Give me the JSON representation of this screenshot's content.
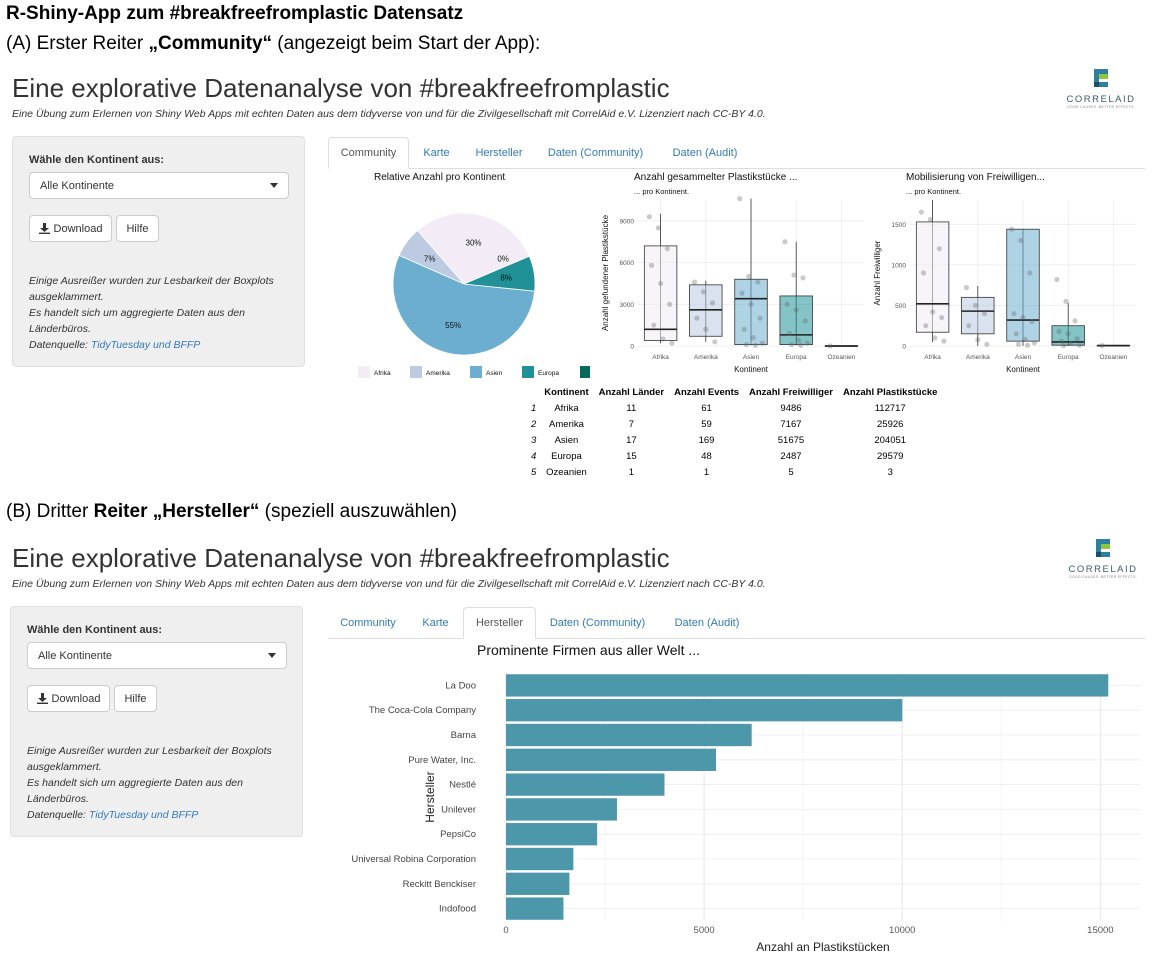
{
  "heading": "R-Shiny-App zum #breakfreefromplastic Datensatz",
  "captionA": {
    "prefix": "(A) Erster Reiter ",
    "bold": "„Community“",
    "suffix": " (angezeigt beim Start der App):"
  },
  "captionB": {
    "prefix": "(B) Dritter ",
    "bold": "Reiter „Hersteller“",
    "suffix": " (speziell auszuwählen)"
  },
  "app": {
    "title": "Eine explorative Datenanalyse von #breakfreefromplastic",
    "subtitle": "Eine Übung zum Erlernen von Shiny Web Apps mit echten Daten aus dem tidyverse von und für die Zivilgesellschaft mit CorrelAid e.V. Lizenziert nach CC-BY 4.0.",
    "logo_word": "CORRELAID",
    "logo_tag": "GOOD CAUSES. BETTER EFFECTS.",
    "logo_colors": [
      "#2f7fa0",
      "#8ec63f",
      "#1c4f66"
    ]
  },
  "sidebar": {
    "label": "Wähle den Kontinent aus:",
    "select_value": "Alle Kontinente",
    "download_label": "Download",
    "help_label": "Hilfe",
    "note1": "Einige Ausreißer wurden zur Lesbarkeit der Boxplots ausgeklammert.",
    "note2": "Es handelt sich um aggregierte Daten aus den Länderbüros.",
    "source_prefix": "Datenquelle: ",
    "source_link": "TidyTuesday und BFFP"
  },
  "tabs": [
    "Community",
    "Karte",
    "Hersteller",
    "Daten (Community)",
    "Daten (Audit)"
  ],
  "colors": {
    "afrika": "#f3ecf6",
    "amerika": "#bccbe2",
    "asien": "#6baed0",
    "europa": "#1f9197",
    "ozeanien": "#05695c",
    "bar": "#4d97ab",
    "link": "#337ab7"
  },
  "community": {
    "pie_title": "Relative Anzahl pro Kontinent",
    "legend": [
      "Afrika",
      "Amerika",
      "Asien",
      "Europa",
      "Ozeanien"
    ],
    "box1_title": "Anzahl gesammelter Plastikstücke ...",
    "box1_sub": "... pro Kontinent.",
    "box1_ylabel": "Anzahl gefundener Plastikstücke",
    "box2_title": "Mobilisierung von Freiwilligen...",
    "box2_sub": "... pro Kontinent.",
    "box2_ylabel": "Anzahl Freiwilliger",
    "xlabel": "Kontinent",
    "table": {
      "headers": [
        "Kontinent",
        "Anzahl Länder",
        "Anzahl Events",
        "Anzahl Freiwilliger",
        "Anzahl Plastikstücke"
      ],
      "rows": [
        [
          "1",
          "Afrika",
          "11",
          "61",
          "9486",
          "112717"
        ],
        [
          "2",
          "Amerika",
          "7",
          "59",
          "7167",
          "25926"
        ],
        [
          "3",
          "Asien",
          "17",
          "169",
          "51675",
          "204051"
        ],
        [
          "4",
          "Europa",
          "15",
          "48",
          "2487",
          "29579"
        ],
        [
          "5",
          "Ozeanien",
          "1",
          "1",
          "5",
          "3"
        ]
      ]
    }
  },
  "hersteller": {
    "title": "Prominente Firmen aus aller Welt ..."
  },
  "chart_data": [
    {
      "type": "pie",
      "title": "Relative Anzahl pro Kontinent",
      "categories": [
        "Afrika",
        "Amerika",
        "Asien",
        "Europa",
        "Ozeanien"
      ],
      "values": [
        30,
        7,
        55,
        8,
        0
      ],
      "labels": [
        "30%",
        "7%",
        "55%",
        "8%",
        "0%"
      ]
    },
    {
      "type": "box",
      "title": "Anzahl gesammelter Plastikstücke ...",
      "subtitle": "... pro Kontinent.",
      "xlabel": "Kontinent",
      "ylabel": "Anzahl gefundener Plastikstücke",
      "ylim": [
        0,
        10500
      ],
      "yticks": [
        0,
        3000,
        6000,
        9000
      ],
      "categories": [
        "Afrika",
        "Amerika",
        "Asien",
        "Europa",
        "Ozeanien"
      ],
      "boxes": [
        {
          "min": 200,
          "q1": 400,
          "median": 1200,
          "q3": 7200,
          "max": 9500
        },
        {
          "min": 300,
          "q1": 700,
          "median": 2600,
          "q3": 4400,
          "max": 4700
        },
        {
          "min": 50,
          "q1": 100,
          "median": 3400,
          "q3": 4800,
          "max": 10600
        },
        {
          "min": 50,
          "q1": 100,
          "median": 800,
          "q3": 3600,
          "max": 7500
        },
        {
          "min": 3,
          "q1": 3,
          "median": 3,
          "q3": 3,
          "max": 3
        }
      ],
      "points": [
        [
          9300,
          8500,
          7000,
          5800,
          4500,
          3000,
          1500,
          500,
          200
        ],
        [
          4600,
          3900,
          3100,
          2000,
          1200,
          300
        ],
        [
          10600,
          5000,
          4600,
          3800,
          3000,
          2000,
          1200,
          600,
          200,
          100,
          50
        ],
        [
          7500,
          5100,
          4900,
          3000,
          2600,
          1800,
          900,
          400,
          200,
          100,
          50
        ],
        [
          3
        ]
      ]
    },
    {
      "type": "box",
      "title": "Mobilisierung von Freiwilligen...",
      "subtitle": "... pro Kontinent.",
      "xlabel": "Kontinent",
      "ylabel": "Anzahl Freiwilliger",
      "ylim": [
        0,
        1800
      ],
      "yticks": [
        0,
        500,
        1000,
        1500
      ],
      "categories": [
        "Afrika",
        "Amerika",
        "Asien",
        "Europa",
        "Ozeanien"
      ],
      "boxes": [
        {
          "min": 50,
          "q1": 170,
          "median": 520,
          "q3": 1530,
          "max": 1800
        },
        {
          "min": 0,
          "q1": 150,
          "median": 430,
          "q3": 600,
          "max": 740
        },
        {
          "min": 0,
          "q1": 60,
          "median": 320,
          "q3": 1440,
          "max": 1440
        },
        {
          "min": 0,
          "q1": 10,
          "median": 50,
          "q3": 250,
          "max": 530
        },
        {
          "min": 5,
          "q1": 5,
          "median": 5,
          "q3": 5,
          "max": 5
        }
      ],
      "points": [
        [
          1650,
          1560,
          1200,
          900,
          420,
          350,
          250,
          100,
          60
        ],
        [
          720,
          500,
          400,
          250,
          80,
          20
        ],
        [
          1440,
          1300,
          900,
          400,
          350,
          300,
          150,
          80,
          40,
          20,
          10
        ],
        [
          820,
          550,
          310,
          180,
          150,
          90,
          60,
          30,
          10,
          5
        ],
        [
          5
        ]
      ]
    },
    {
      "type": "bar",
      "orientation": "horizontal",
      "title": "Prominente Firmen aus aller Welt ...",
      "xlabel": "Anzahl an Plastikstücken",
      "ylabel": "Hersteller",
      "xlim": [
        0,
        16000
      ],
      "xticks": [
        0,
        5000,
        10000,
        15000
      ],
      "categories": [
        "La Doo",
        "The Coca-Cola Company",
        "Barna",
        "Pure Water, Inc.",
        "Nestlé",
        "Unilever",
        "PepsiCo",
        "Universal Robina Corporation",
        "Reckitt Benckiser",
        "Indofood"
      ],
      "values": [
        15200,
        10000,
        6200,
        5300,
        4000,
        2800,
        2300,
        1700,
        1600,
        1450
      ]
    }
  ]
}
